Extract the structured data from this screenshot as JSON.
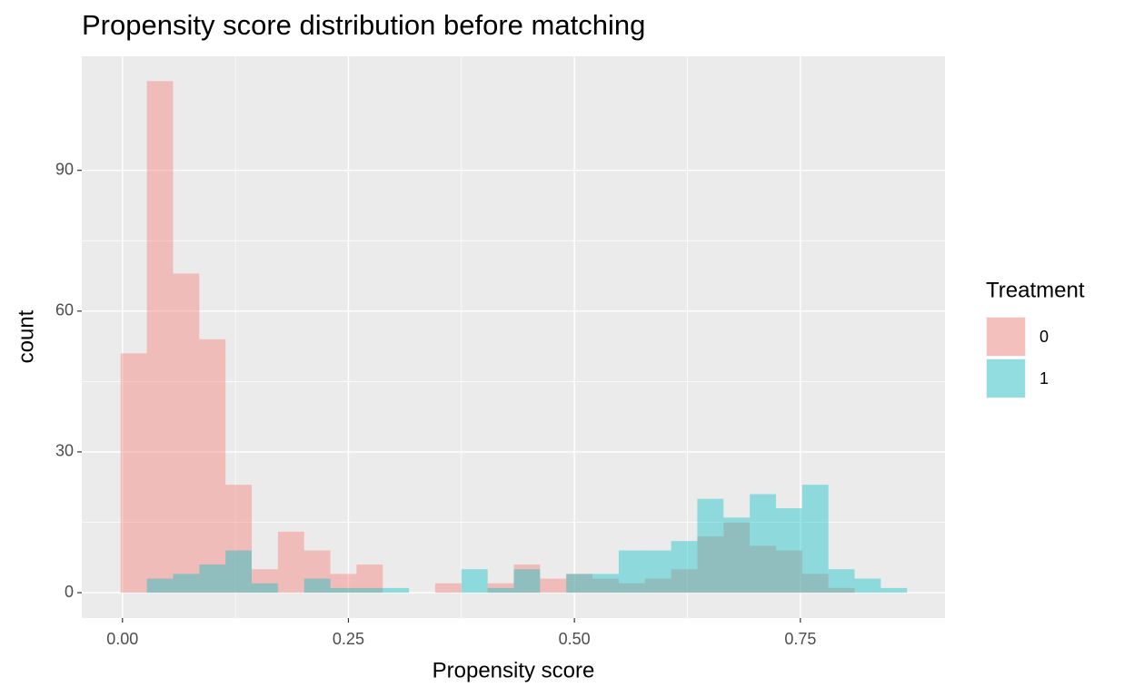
{
  "chart_data": {
    "type": "histogram",
    "title": "Propensity score distribution before matching",
    "xlabel": "Propensity score",
    "ylabel": "count",
    "legend_title": "Treatment",
    "legend": "right",
    "bins": [
      -0.002,
      0.027,
      0.056,
      0.085,
      0.114,
      0.143,
      0.172,
      0.201,
      0.23,
      0.259,
      0.288,
      0.317,
      0.346,
      0.375,
      0.404,
      0.433,
      0.462,
      0.491,
      0.52,
      0.549,
      0.578,
      0.607,
      0.636,
      0.665,
      0.694,
      0.723,
      0.752,
      0.781,
      0.81,
      0.839,
      0.868
    ],
    "series": [
      {
        "name": "0",
        "color": "#F8766D",
        "values": [
          51,
          109,
          68,
          54,
          23,
          5,
          13,
          9,
          4,
          6,
          0,
          0,
          2,
          0,
          2,
          6,
          3,
          4,
          3,
          2,
          3,
          5,
          12,
          15,
          10,
          9,
          4,
          1,
          0,
          0
        ]
      },
      {
        "name": "1",
        "color": "#00BFC4",
        "values": [
          0,
          3,
          4,
          6,
          9,
          2,
          0,
          3,
          1,
          1,
          1,
          0,
          0,
          5,
          1,
          5,
          0,
          4,
          4,
          9,
          9,
          11,
          20,
          16,
          21,
          18,
          23,
          5,
          3,
          1
        ]
      }
    ],
    "opacity": 0.4,
    "xlim": [
      -0.045,
      0.91
    ],
    "xticks": [
      {
        "value": 0,
        "label": "0.00"
      },
      {
        "value": 0.25,
        "label": "0.25"
      },
      {
        "value": 0.5,
        "label": "0.50"
      },
      {
        "value": 0.75,
        "label": "0.75"
      }
    ],
    "ylim": [
      -5.4,
      114.3
    ],
    "yticks": [
      0,
      30,
      60,
      90
    ],
    "grid": true
  }
}
